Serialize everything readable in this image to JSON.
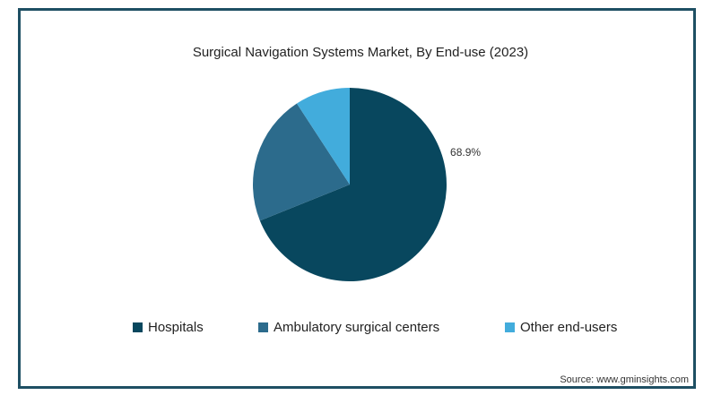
{
  "chart_data": {
    "type": "pie",
    "title": "Surgical Navigation Systems Market, By End-use (2023)",
    "categories": [
      "Hospitals",
      "Ambulatory surgical centers",
      "Other end-users"
    ],
    "values": [
      68.9,
      21.9,
      9.2
    ],
    "colors": [
      "#08475e",
      "#2c6b8c",
      "#42acdc"
    ],
    "data_labels": [
      "68.9%",
      "",
      ""
    ],
    "legend": "bottom",
    "source": "Source: www.gminsights.com"
  }
}
